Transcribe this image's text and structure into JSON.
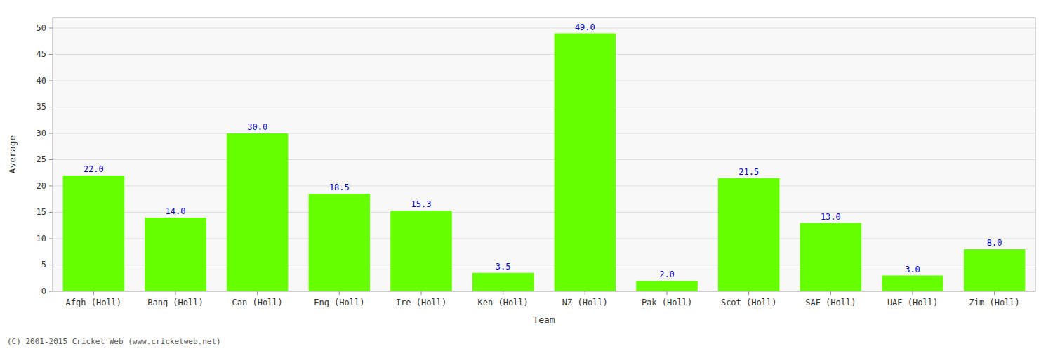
{
  "chart_data": {
    "type": "bar",
    "categories": [
      "Afgh (Holl)",
      "Bang (Holl)",
      "Can (Holl)",
      "Eng (Holl)",
      "Ire (Holl)",
      "Ken (Holl)",
      "NZ (Holl)",
      "Pak (Holl)",
      "Scot (Holl)",
      "SAF (Holl)",
      "UAE (Holl)",
      "Zim (Holl)"
    ],
    "values": [
      22.0,
      14.0,
      30.0,
      18.5,
      15.3,
      3.5,
      49.0,
      2.0,
      21.5,
      13.0,
      3.0,
      8.0
    ],
    "value_labels": [
      "22.0",
      "14.0",
      "30.0",
      "18.5",
      "15.3",
      "3.5",
      "49.0",
      "2.0",
      "21.5",
      "13.0",
      "3.0",
      "8.0"
    ],
    "data_labels": true,
    "color": "#66ff00",
    "xlabel": "Team",
    "ylabel": "Average",
    "ylim": [
      0,
      52
    ],
    "yticks": [
      0,
      5,
      10,
      15,
      20,
      25,
      30,
      35,
      40,
      45,
      50
    ],
    "grid": true,
    "annotations": [
      "(C) 2001-2015 Cricket Web (www.cricketweb.net)"
    ]
  }
}
